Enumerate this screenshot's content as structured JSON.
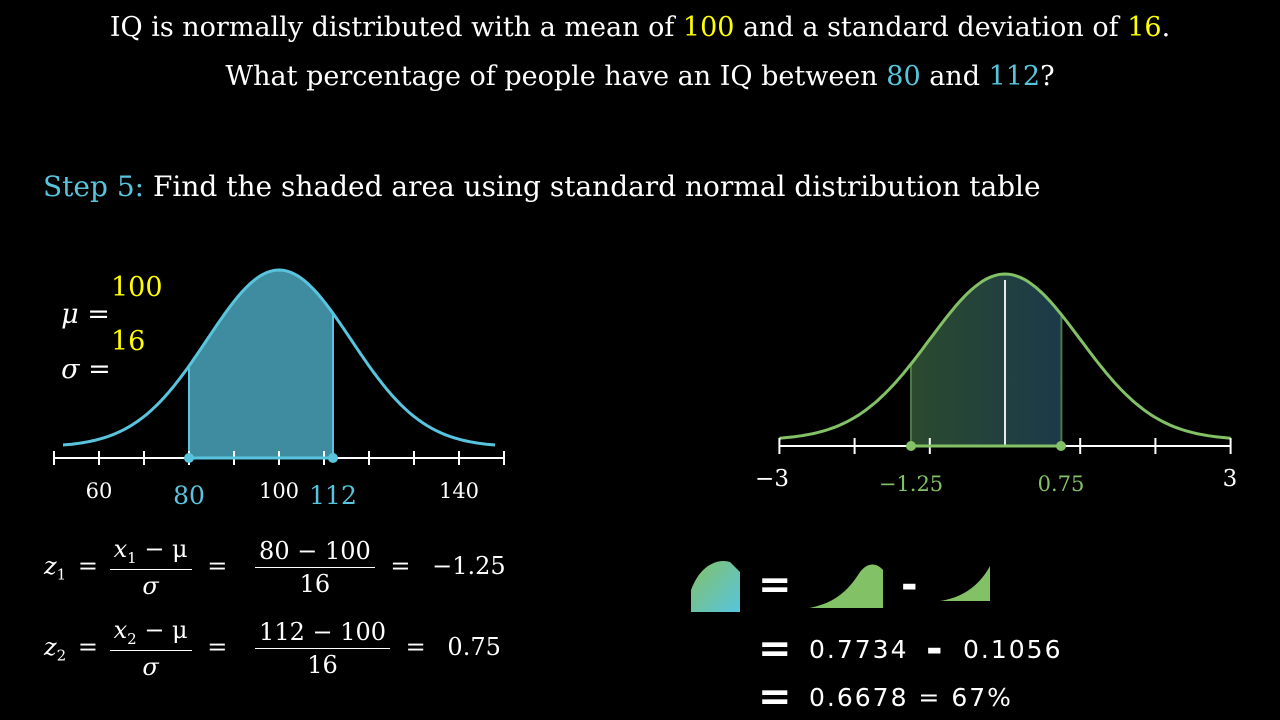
{
  "question": {
    "line1_a": "IQ is normally distributed with a mean of ",
    "line1_mean": "100",
    "line1_b": " and a standard deviation of ",
    "line1_sd": "16",
    "line1_c": ".",
    "line2_a": "What percentage of people have an IQ between ",
    "line2_low": "80",
    "line2_b": " and ",
    "line2_high": "112",
    "line2_c": "?"
  },
  "step": {
    "label": "Step 5:",
    "text": " Find the shaded area using standard normal distribution table"
  },
  "params": {
    "mu_label": "μ =",
    "mu_value": "100",
    "sigma_label": "σ =",
    "sigma_value": "16"
  },
  "left_axis": {
    "ticks": [
      "60",
      "100",
      "140"
    ],
    "highlight_low": "80",
    "highlight_high": "112"
  },
  "z1": {
    "lhs": "z",
    "sub": "1",
    "num": "x",
    "num_sub": "1",
    "num_rest": " − μ",
    "den": "σ",
    "num2": "80 − 100",
    "den2": "16",
    "result": "−1.25"
  },
  "z2": {
    "lhs": "z",
    "sub": "2",
    "num": "x",
    "num_sub": "2",
    "num_rest": " − μ",
    "den": "σ",
    "num2": "112 − 100",
    "den2": "16",
    "result": "0.75"
  },
  "right_axis": {
    "min": "−3",
    "max": "3",
    "z_low": "−1.25",
    "z_high": "0.75"
  },
  "calc": {
    "line1_a": "0.7734",
    "line1_b": "0.1056",
    "line2": "0.6678 = 67%"
  },
  "colors": {
    "yellow": "#ffff00",
    "blue": "#58c4dd",
    "green": "#83c167"
  }
}
